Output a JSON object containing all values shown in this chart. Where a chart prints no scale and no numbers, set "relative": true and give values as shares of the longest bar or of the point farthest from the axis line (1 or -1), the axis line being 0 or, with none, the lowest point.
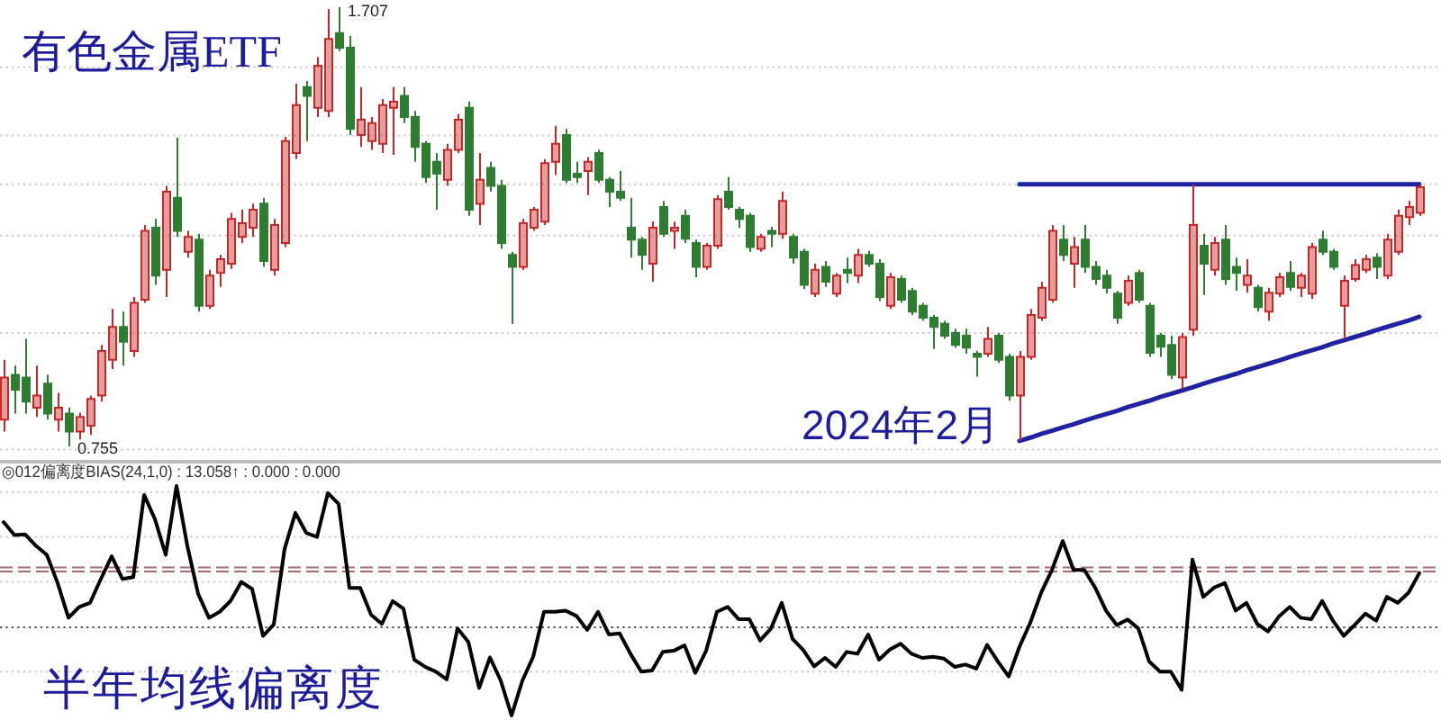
{
  "chart_data": [
    {
      "type": "candlestick",
      "title": "有色金属ETF",
      "categories": [
        null,
        null,
        null,
        null,
        null,
        null,
        null,
        null,
        null,
        null,
        null,
        null,
        null,
        null,
        null,
        null,
        null,
        null,
        null,
        null,
        null,
        null,
        null,
        null,
        null,
        null,
        null,
        null,
        null,
        null,
        null,
        null,
        null,
        null,
        null,
        null,
        null,
        null,
        null,
        null,
        null,
        null,
        null,
        null,
        null,
        null,
        null,
        null,
        null,
        null,
        null,
        null,
        null,
        null,
        null,
        null,
        null,
        null,
        null,
        null,
        null,
        null,
        null,
        null,
        null,
        null,
        null,
        null,
        null,
        null,
        null,
        null,
        null,
        null,
        null,
        null,
        null,
        null,
        null,
        null,
        null,
        null,
        null,
        null,
        null,
        null,
        null,
        null,
        null,
        null,
        null,
        null,
        null,
        null,
        null,
        null,
        null,
        null,
        null,
        null,
        null,
        null,
        null,
        null,
        null,
        null,
        null,
        null,
        null,
        null,
        null,
        null,
        null,
        null,
        null,
        null,
        null,
        null,
        null,
        null,
        null,
        null,
        null,
        null,
        null,
        null,
        null,
        null,
        null,
        null,
        null,
        null
      ],
      "ohlc": [
        [
          0.813,
          0.943,
          0.787,
          0.904
        ],
        [
          0.91,
          0.93,
          0.826,
          0.878
        ],
        [
          0.904,
          0.988,
          0.826,
          0.852
        ],
        [
          0.839,
          0.93,
          0.819,
          0.865
        ],
        [
          0.891,
          0.91,
          0.813,
          0.826
        ],
        [
          0.813,
          0.871,
          0.787,
          0.839
        ],
        [
          0.826,
          0.839,
          0.755,
          0.787
        ],
        [
          0.787,
          0.828,
          0.77,
          0.819
        ],
        [
          0.8,
          0.865,
          0.78,
          0.858
        ],
        [
          0.865,
          0.975,
          0.852,
          0.962
        ],
        [
          0.943,
          1.053,
          0.923,
          1.014
        ],
        [
          1.014,
          1.047,
          0.93,
          0.982
        ],
        [
          0.962,
          1.079,
          0.949,
          1.066
        ],
        [
          1.073,
          1.235,
          1.066,
          1.222
        ],
        [
          1.229,
          1.248,
          1.105,
          1.125
        ],
        [
          1.138,
          1.32,
          1.079,
          1.307
        ],
        [
          1.294,
          1.424,
          1.209,
          1.222
        ],
        [
          1.177,
          1.222,
          1.164,
          1.209
        ],
        [
          1.203,
          1.216,
          1.047,
          1.06
        ],
        [
          1.06,
          1.138,
          1.053,
          1.125
        ],
        [
          1.131,
          1.17,
          1.101,
          1.161
        ],
        [
          1.151,
          1.261,
          1.14,
          1.248
        ],
        [
          1.209,
          1.268,
          1.196,
          1.239
        ],
        [
          1.229,
          1.281,
          1.209,
          1.268
        ],
        [
          1.281,
          1.294,
          1.144,
          1.157
        ],
        [
          1.138,
          1.248,
          1.125,
          1.235
        ],
        [
          1.196,
          1.426,
          1.187,
          1.417
        ],
        [
          1.391,
          1.541,
          1.378,
          1.495
        ],
        [
          1.534,
          1.547,
          1.417,
          1.515
        ],
        [
          1.489,
          1.599,
          1.469,
          1.58
        ],
        [
          1.482,
          1.703,
          1.469,
          1.638
        ],
        [
          1.651,
          1.707,
          1.612,
          1.619
        ],
        [
          1.619,
          1.645,
          1.43,
          1.443
        ],
        [
          1.43,
          1.534,
          1.404,
          1.463
        ],
        [
          1.417,
          1.469,
          1.398,
          1.456
        ],
        [
          1.411,
          1.508,
          1.391,
          1.495
        ],
        [
          1.489,
          1.534,
          1.387,
          1.502
        ],
        [
          1.515,
          1.534,
          1.456,
          1.469
        ],
        [
          1.469,
          1.482,
          1.372,
          1.404
        ],
        [
          1.411,
          1.417,
          1.326,
          1.339
        ],
        [
          1.372,
          1.391,
          1.268,
          1.346
        ],
        [
          1.333,
          1.411,
          1.32,
          1.398
        ],
        [
          1.398,
          1.476,
          1.391,
          1.463
        ],
        [
          1.489,
          1.502,
          1.255,
          1.268
        ],
        [
          1.281,
          1.391,
          1.235,
          1.333
        ],
        [
          1.359,
          1.372,
          1.307,
          1.32
        ],
        [
          1.32,
          1.333,
          1.183,
          1.196
        ],
        [
          1.17,
          1.177,
          1.021,
          1.144
        ],
        [
          1.144,
          1.248,
          1.138,
          1.239
        ],
        [
          1.229,
          1.274,
          1.222,
          1.268
        ],
        [
          1.242,
          1.378,
          1.235,
          1.369
        ],
        [
          1.372,
          1.45,
          1.343,
          1.411
        ],
        [
          1.43,
          1.443,
          1.326,
          1.333
        ],
        [
          1.346,
          1.372,
          1.326,
          1.339
        ],
        [
          1.352,
          1.382,
          1.3,
          1.372
        ],
        [
          1.391,
          1.398,
          1.326,
          1.333
        ],
        [
          1.333,
          1.339,
          1.274,
          1.307
        ],
        [
          1.307,
          1.352,
          1.287,
          1.294
        ],
        [
          1.229,
          1.294,
          1.164,
          1.203
        ],
        [
          1.203,
          1.209,
          1.138,
          1.17
        ],
        [
          1.151,
          1.242,
          1.112,
          1.229
        ],
        [
          1.274,
          1.287,
          1.209,
          1.216
        ],
        [
          1.222,
          1.242,
          1.183,
          1.229
        ],
        [
          1.255,
          1.268,
          1.196,
          1.205
        ],
        [
          1.196,
          1.203,
          1.122,
          1.144
        ],
        [
          1.144,
          1.196,
          1.138,
          1.19
        ],
        [
          1.19,
          1.3,
          1.183,
          1.291
        ],
        [
          1.307,
          1.339,
          1.268,
          1.274
        ],
        [
          1.268,
          1.274,
          1.229,
          1.248
        ],
        [
          1.255,
          1.261,
          1.177,
          1.187
        ],
        [
          1.183,
          1.216,
          1.177,
          1.209
        ],
        [
          1.222,
          1.231,
          1.187,
          1.216
        ],
        [
          1.216,
          1.307,
          1.205,
          1.287
        ],
        [
          1.209,
          1.216,
          1.151,
          1.164
        ],
        [
          1.177,
          1.183,
          1.096,
          1.105
        ],
        [
          1.086,
          1.151,
          1.079,
          1.138
        ],
        [
          1.144,
          1.157,
          1.101,
          1.112
        ],
        [
          1.086,
          1.131,
          1.079,
          1.125
        ],
        [
          1.138,
          1.164,
          1.109,
          1.131
        ],
        [
          1.125,
          1.183,
          1.109,
          1.17
        ],
        [
          1.17,
          1.179,
          1.144,
          1.151
        ],
        [
          1.151,
          1.161,
          1.07,
          1.079
        ],
        [
          1.06,
          1.131,
          1.053,
          1.122
        ],
        [
          1.118,
          1.125,
          1.066,
          1.073
        ],
        [
          1.092,
          1.099,
          1.04,
          1.047
        ],
        [
          1.06,
          1.066,
          1.027,
          1.034
        ],
        [
          1.034,
          1.04,
          0.966,
          1.014
        ],
        [
          1.021,
          1.027,
          0.988,
          0.995
        ],
        [
          1.001,
          1.01,
          0.969,
          0.975
        ],
        [
          0.995,
          1.01,
          0.956,
          0.969
        ],
        [
          0.956,
          0.962,
          0.906,
          0.949
        ],
        [
          0.956,
          1.014,
          0.949,
          0.988
        ],
        [
          0.995,
          1.001,
          0.936,
          0.943
        ],
        [
          0.949,
          0.956,
          0.854,
          0.865
        ],
        [
          0.865,
          0.962,
          0.767,
          0.949
        ],
        [
          0.949,
          1.053,
          0.943,
          1.04
        ],
        [
          1.034,
          1.112,
          1.027,
          1.099
        ],
        [
          1.073,
          1.235,
          1.066,
          1.222
        ],
        [
          1.203,
          1.235,
          1.157,
          1.17
        ],
        [
          1.151,
          1.209,
          1.099,
          1.187
        ],
        [
          1.203,
          1.235,
          1.131,
          1.144
        ],
        [
          1.144,
          1.157,
          1.105,
          1.118
        ],
        [
          1.125,
          1.138,
          1.086,
          1.099
        ],
        [
          1.086,
          1.092,
          1.021,
          1.034
        ],
        [
          1.066,
          1.125,
          1.06,
          1.114
        ],
        [
          1.131,
          1.138,
          1.066,
          1.073
        ],
        [
          1.06,
          1.066,
          0.949,
          0.958
        ],
        [
          0.995,
          1.001,
          0.949,
          0.971
        ],
        [
          0.975,
          0.995,
          0.901,
          0.91
        ],
        [
          0.904,
          1.001,
          0.88,
          0.992
        ],
        [
          1.008,
          1.323,
          0.995,
          1.235
        ],
        [
          1.19,
          1.216,
          1.083,
          1.151
        ],
        [
          1.138,
          1.209,
          1.125,
          1.196
        ],
        [
          1.203,
          1.235,
          1.105,
          1.118
        ],
        [
          1.144,
          1.164,
          1.092,
          1.131
        ],
        [
          1.105,
          1.161,
          1.088,
          1.125
        ],
        [
          1.099,
          1.105,
          1.047,
          1.057
        ],
        [
          1.047,
          1.099,
          1.027,
          1.088
        ],
        [
          1.086,
          1.131,
          1.079,
          1.122
        ],
        [
          1.131,
          1.157,
          1.092,
          1.101
        ],
        [
          1.099,
          1.131,
          1.079,
          1.125
        ],
        [
          1.086,
          1.196,
          1.075,
          1.187
        ],
        [
          1.203,
          1.222,
          1.17,
          1.177
        ],
        [
          1.177,
          1.183,
          1.138,
          1.144
        ],
        [
          1.06,
          1.125,
          0.988,
          1.114
        ],
        [
          1.118,
          1.161,
          1.112,
          1.148
        ],
        [
          1.138,
          1.17,
          1.131,
          1.161
        ],
        [
          1.164,
          1.174,
          1.118,
          1.144
        ],
        [
          1.125,
          1.216,
          1.118,
          1.203
        ],
        [
          1.177,
          1.268,
          1.17,
          1.255
        ],
        [
          1.252,
          1.287,
          1.235,
          1.274
        ],
        [
          1.261,
          1.323,
          1.255,
          1.317
        ]
      ],
      "colors": [
        "#c62828",
        "#2e7d32",
        "#2e7d32",
        "#c62828",
        "#2e7d32",
        "#c62828",
        "#2e7d32",
        "#c62828",
        "#c62828",
        "#c62828",
        "#c62828",
        "#2e7d32",
        "#c62828",
        "#c62828",
        "#2e7d32",
        "#c62828",
        "#2e7d32",
        "#c62828",
        "#2e7d32",
        "#c62828",
        "#c62828",
        "#c62828",
        "#c62828",
        "#c62828",
        "#2e7d32",
        "#c62828",
        "#c62828",
        "#c62828",
        "#2e7d32",
        "#c62828",
        "#c62828",
        "#2e7d32",
        "#2e7d32",
        "#c62828",
        "#c62828",
        "#c62828",
        "#c62828",
        "#2e7d32",
        "#2e7d32",
        "#2e7d32",
        "#2e7d32",
        "#c62828",
        "#c62828",
        "#2e7d32",
        "#c62828",
        "#2e7d32",
        "#2e7d32",
        "#2e7d32",
        "#c62828",
        "#c62828",
        "#c62828",
        "#c62828",
        "#2e7d32",
        "#2e7d32",
        "#c62828",
        "#2e7d32",
        "#2e7d32",
        "#2e7d32",
        "#2e7d32",
        "#2e7d32",
        "#c62828",
        "#2e7d32",
        "#c62828",
        "#2e7d32",
        "#2e7d32",
        "#c62828",
        "#c62828",
        "#2e7d32",
        "#2e7d32",
        "#2e7d32",
        "#c62828",
        "#2e7d32",
        "#c62828",
        "#2e7d32",
        "#2e7d32",
        "#c62828",
        "#2e7d32",
        "#c62828",
        "#2e7d32",
        "#c62828",
        "#2e7d32",
        "#2e7d32",
        "#c62828",
        "#2e7d32",
        "#2e7d32",
        "#2e7d32",
        "#2e7d32",
        "#2e7d32",
        "#2e7d32",
        "#2e7d32",
        "#2e7d32",
        "#c62828",
        "#2e7d32",
        "#2e7d32",
        "#c62828",
        "#c62828",
        "#c62828",
        "#c62828",
        "#2e7d32",
        "#c62828",
        "#2e7d32",
        "#2e7d32",
        "#2e7d32",
        "#2e7d32",
        "#c62828",
        "#2e7d32",
        "#2e7d32",
        "#2e7d32",
        "#2e7d32",
        "#c62828",
        "#c62828",
        "#2e7d32",
        "#c62828",
        "#2e7d32",
        "#2e7d32",
        "#c62828",
        "#2e7d32",
        "#c62828",
        "#c62828",
        "#2e7d32",
        "#c62828",
        "#c62828",
        "#2e7d32",
        "#2e7d32",
        "#c62828",
        "#c62828",
        "#c62828",
        "#2e7d32",
        "#c62828",
        "#c62828",
        "#c62828",
        "#c62828"
      ],
      "series": [
        {
          "type": "line",
          "color": "#1f23a3",
          "values": [
            null,
            null,
            null,
            null,
            null,
            null,
            null,
            null,
            null,
            null,
            null,
            null,
            null,
            null,
            null,
            null,
            null,
            null,
            null,
            null,
            null,
            null,
            null,
            null,
            null,
            null,
            null,
            null,
            null,
            null,
            null,
            null,
            null,
            null,
            null,
            null,
            null,
            null,
            null,
            null,
            null,
            null,
            null,
            null,
            null,
            null,
            null,
            null,
            null,
            null,
            null,
            null,
            null,
            null,
            null,
            null,
            null,
            null,
            null,
            null,
            null,
            null,
            null,
            null,
            null,
            null,
            null,
            null,
            null,
            null,
            null,
            null,
            null,
            null,
            null,
            null,
            null,
            null,
            null,
            null,
            null,
            null,
            null,
            null,
            null,
            null,
            null,
            null,
            null,
            null,
            null,
            null,
            null,
            null,
            1.323,
            1.323,
            1.323,
            1.323,
            1.323,
            1.323,
            1.323,
            1.323,
            1.323,
            1.323,
            1.323,
            1.323,
            1.323,
            1.323,
            1.323,
            1.323,
            1.323,
            1.323,
            1.323,
            1.323,
            1.323,
            1.323,
            1.323,
            1.323,
            1.323,
            1.323,
            1.323,
            1.323,
            1.323,
            1.323,
            1.323,
            1.323,
            1.323,
            1.323,
            1.323,
            1.323,
            1.323,
            1.323
          ]
        },
        {
          "type": "line",
          "color": "#1f23a3",
          "values": [
            null,
            null,
            null,
            null,
            null,
            null,
            null,
            null,
            null,
            null,
            null,
            null,
            null,
            null,
            null,
            null,
            null,
            null,
            null,
            null,
            null,
            null,
            null,
            null,
            null,
            null,
            null,
            null,
            null,
            null,
            null,
            null,
            null,
            null,
            null,
            null,
            null,
            null,
            null,
            null,
            null,
            null,
            null,
            null,
            null,
            null,
            null,
            null,
            null,
            null,
            null,
            null,
            null,
            null,
            null,
            null,
            null,
            null,
            null,
            null,
            null,
            null,
            null,
            null,
            null,
            null,
            null,
            null,
            null,
            null,
            null,
            null,
            null,
            null,
            null,
            null,
            null,
            null,
            null,
            null,
            null,
            null,
            null,
            null,
            null,
            null,
            null,
            null,
            null,
            null,
            null,
            null,
            null,
            null,
            0.767,
            0.774,
            0.782,
            0.789,
            0.796,
            0.803,
            0.811,
            0.818,
            0.825,
            0.832,
            0.84,
            0.847,
            0.854,
            0.862,
            0.869,
            0.876,
            0.883,
            0.891,
            0.898,
            0.905,
            0.912,
            0.92,
            0.927,
            0.934,
            0.941,
            0.949,
            0.956,
            0.963,
            0.97,
            0.978,
            0.985,
            0.992,
            0.999,
            1.007,
            1.014,
            1.021,
            1.028,
            1.036
          ]
        }
      ],
      "ref_lines": [
        {
          "axis": "y",
          "value": 1.577,
          "color": "#cccccc",
          "line_style": "dotted"
        },
        {
          "axis": "y",
          "value": 1.429,
          "color": "#cccccc",
          "line_style": "dotted"
        },
        {
          "axis": "y",
          "value": 1.323,
          "color": "#cccccc",
          "line_style": "dotted"
        },
        {
          "axis": "y",
          "value": 1.212,
          "color": "#cccccc",
          "line_style": "dotted"
        },
        {
          "axis": "y",
          "value": 1.001,
          "color": "#cccccc",
          "line_style": "dotted"
        },
        {
          "axis": "y",
          "value": 0.748,
          "color": "#cccccc",
          "line_style": "dotted"
        }
      ],
      "annotations": [
        "1.707",
        "0.755",
        "2024年2月"
      ]
    },
    {
      "type": "line",
      "title": "半年均线偏离度",
      "subtitle": "◎012偏离度BIAS(24,1,0) : 13.058↑ : 0.000 : 0.000",
      "relative": true,
      "categories": [
        null,
        null,
        null,
        null,
        null,
        null,
        null,
        null,
        null,
        null,
        null,
        null,
        null,
        null,
        null,
        null,
        null,
        null,
        null,
        null,
        null,
        null,
        null,
        null,
        null,
        null,
        null,
        null,
        null,
        null,
        null,
        null,
        null,
        null,
        null,
        null,
        null,
        null,
        null,
        null,
        null,
        null,
        null,
        null,
        null,
        null,
        null,
        null,
        null,
        null,
        null,
        null,
        null,
        null,
        null,
        null,
        null,
        null,
        null,
        null,
        null,
        null,
        null,
        null,
        null,
        null,
        null,
        null,
        null,
        null,
        null,
        null,
        null,
        null,
        null,
        null,
        null,
        null,
        null,
        null,
        null,
        null,
        null,
        null,
        null,
        null,
        null,
        null,
        null,
        null,
        null,
        null,
        null,
        null,
        null,
        null,
        null,
        null,
        null,
        null,
        null,
        null,
        null,
        null,
        null,
        null,
        null,
        null,
        null,
        null,
        null,
        null,
        null,
        null,
        null,
        null,
        null,
        null,
        null,
        null,
        null,
        null,
        null,
        null,
        null,
        null,
        null,
        null,
        null,
        null,
        null,
        null
      ],
      "series": [
        {
          "color": "#000000",
          "values": [
            0.843,
            0.786,
            0.789,
            0.739,
            0.7,
            0.577,
            0.426,
            0.473,
            0.491,
            0.595,
            0.694,
            0.595,
            0.603,
            0.961,
            0.856,
            0.7,
            1,
            0.739,
            0.53,
            0.426,
            0.452,
            0.499,
            0.582,
            0.551,
            0.347,
            0.397,
            0.726,
            0.883,
            0.796,
            0.778,
            0.969,
            0.922,
            0.556,
            0.556,
            0.439,
            0.399,
            0.499,
            0.465,
            0.243,
            0.212,
            0.191,
            0.157,
            0.379,
            0.321,
            0.12,
            0.253,
            0.152,
            0,
            0.152,
            0.256,
            0.452,
            0.452,
            0.457,
            0.434,
            0.373,
            0.452,
            0.353,
            0.358,
            0.269,
            0.191,
            0.196,
            0.277,
            0.282,
            0.306,
            0.186,
            0.282,
            0.452,
            0.473,
            0.42,
            0.42,
            0.327,
            0.379,
            0.491,
            0.334,
            0.285,
            0.214,
            0.251,
            0.212,
            0.277,
            0.269,
            0.353,
            0.243,
            0.287,
            0.313,
            0.269,
            0.251,
            0.256,
            0.248,
            0.212,
            0.222,
            0.204,
            0.308,
            0.235,
            0.17,
            0.3,
            0.405,
            0.535,
            0.634,
            0.76,
            0.634,
            0.634,
            0.557,
            0.457,
            0.394,
            0.418,
            0.379,
            0.235,
            0.191,
            0.191,
            0.112,
            0.679,
            0.517,
            0.557,
            0.577,
            0.457,
            0.491,
            0.399,
            0.366,
            0.431,
            0.473,
            0.426,
            0.42,
            0.499,
            0.413,
            0.347,
            0.394,
            0.444,
            0.413,
            0.517,
            0.491,
            0.535,
            0.621
          ]
        }
      ],
      "ref_lines": [
        {
          "axis": "y",
          "value": 0.974,
          "color": "#cccccc",
          "line_style": "dotted"
        },
        {
          "axis": "y",
          "value": 0.778,
          "color": "#cccccc",
          "line_style": "dotted"
        },
        {
          "axis": "y",
          "value": 0.582,
          "color": "#cccccc",
          "line_style": "dotted"
        },
        {
          "axis": "y",
          "value": 0.191,
          "color": "#cccccc",
          "line_style": "dotted"
        },
        {
          "axis": "y",
          "value": 0.645,
          "color": "#a86c6c",
          "line_style": "dashed"
        },
        {
          "axis": "y",
          "value": 0.627,
          "color": "#a86c6c",
          "line_style": "dashed"
        },
        {
          "axis": "y",
          "value": 0.384,
          "color": "#555555",
          "line_style": "dotted"
        }
      ]
    }
  ]
}
